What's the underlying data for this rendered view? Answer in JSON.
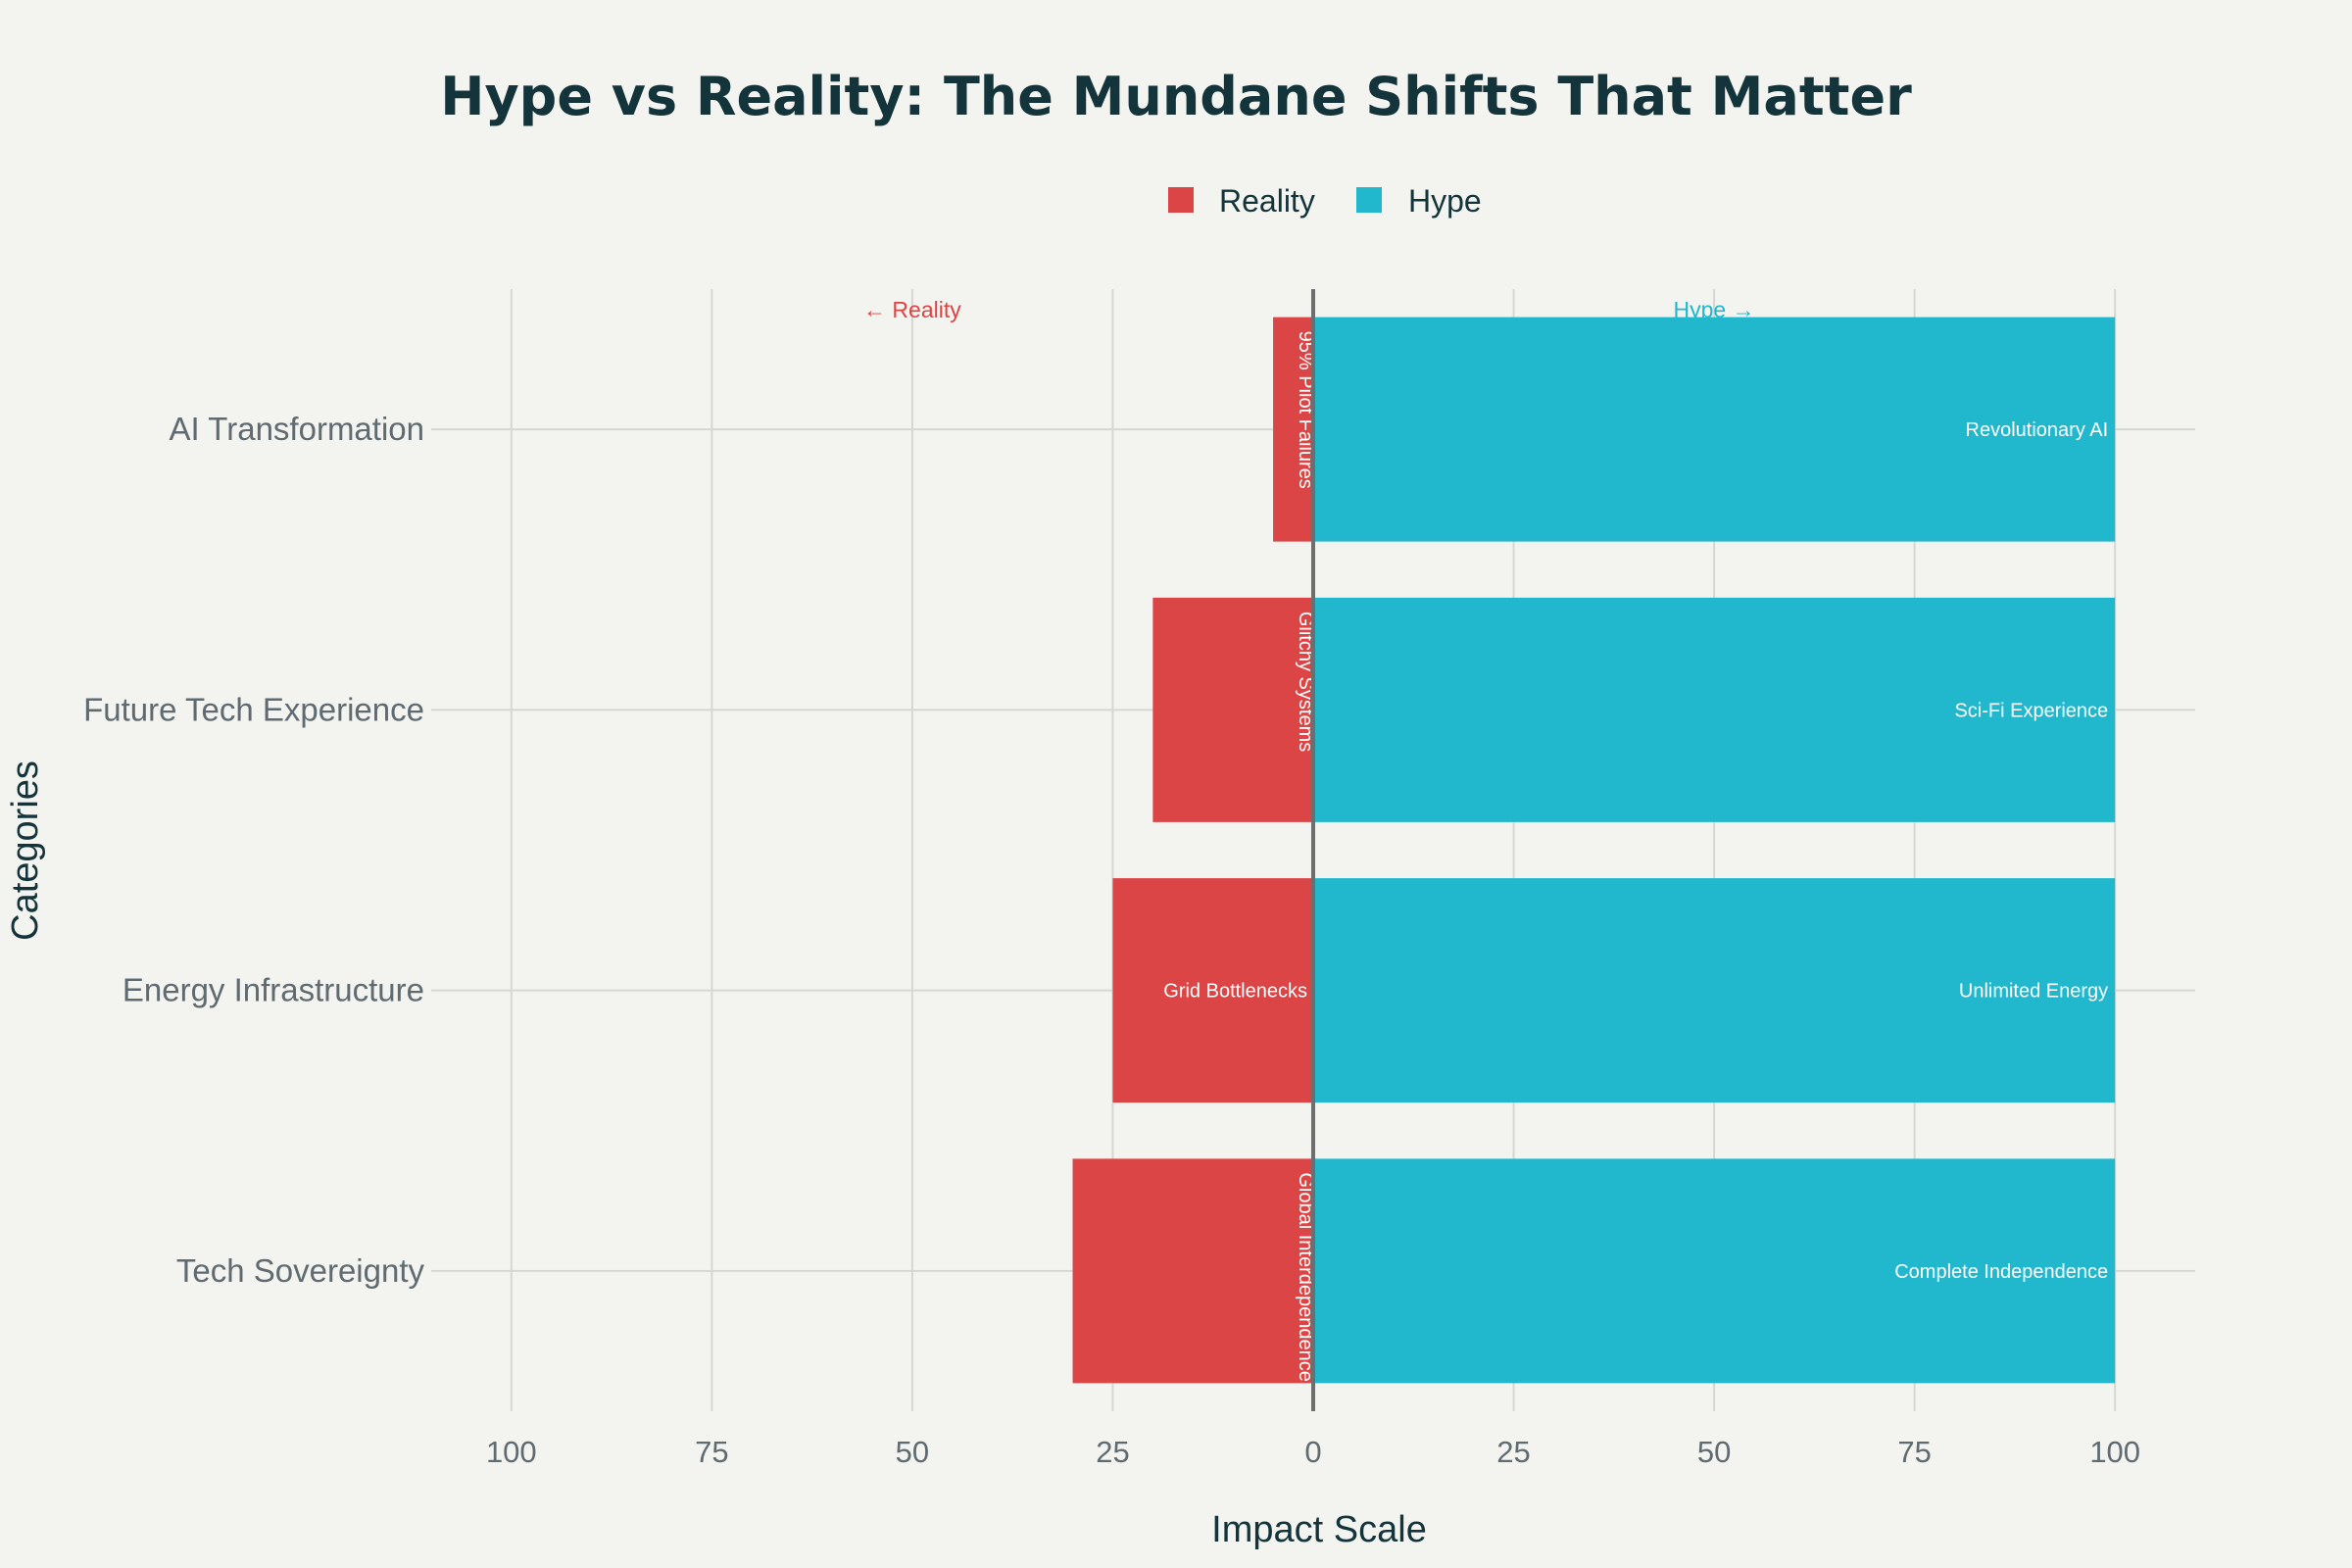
{
  "chart_data": {
    "type": "bar",
    "orientation": "horizontal-diverging",
    "title": "Hype vs Reality: The Mundane Shifts That Matter",
    "xlabel": "Impact Scale",
    "ylabel": "Categories",
    "xlim": [
      -110,
      110
    ],
    "x_ticks": [
      -100,
      -75,
      -50,
      -25,
      0,
      25,
      50,
      75,
      100
    ],
    "x_tick_labels": [
      "100",
      "75",
      "50",
      "25",
      "0",
      "25",
      "50",
      "75",
      "100"
    ],
    "categories": [
      "Tech Sovereignty",
      "Energy Infrastructure",
      "Future Tech Experience",
      "AI Transformation"
    ],
    "series": [
      {
        "name": "Reality",
        "color": "#db4545",
        "values": [
          -30,
          -25,
          -20,
          -5
        ],
        "labels": [
          "Global Interdependence",
          "Grid Bottlenecks",
          "Glitchy Systems",
          "95% Pilot Failures"
        ]
      },
      {
        "name": "Hype",
        "color": "#21b8cd",
        "values": [
          100,
          100,
          100,
          100
        ],
        "labels": [
          "Complete Independence",
          "Unlimited Energy",
          "Sci-Fi Experience",
          "Revolutionary AI"
        ]
      }
    ],
    "annotations": [
      {
        "text": "← Reality",
        "x": -50,
        "color": "#db4545"
      },
      {
        "text": "Hype →",
        "x": 50,
        "color": "#21b8cd"
      }
    ],
    "legend": {
      "position": "top-center",
      "orientation": "horizontal"
    },
    "grid": true
  }
}
